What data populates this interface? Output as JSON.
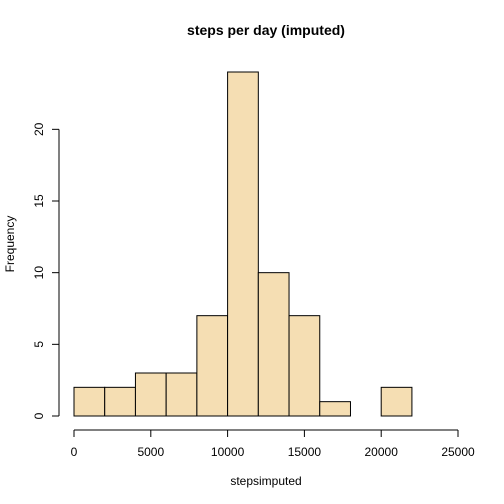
{
  "chart_data": {
    "type": "bar",
    "title": "steps per day (imputed)",
    "xlabel": "stepsimputed",
    "ylabel": "Frequency",
    "bins": [
      {
        "from": 0,
        "to": 2000,
        "count": 2
      },
      {
        "from": 2000,
        "to": 4000,
        "count": 2
      },
      {
        "from": 4000,
        "to": 6000,
        "count": 3
      },
      {
        "from": 6000,
        "to": 8000,
        "count": 3
      },
      {
        "from": 8000,
        "to": 10000,
        "count": 7
      },
      {
        "from": 10000,
        "to": 12000,
        "count": 24
      },
      {
        "from": 12000,
        "to": 14000,
        "count": 10
      },
      {
        "from": 14000,
        "to": 16000,
        "count": 7
      },
      {
        "from": 16000,
        "to": 18000,
        "count": 1
      },
      {
        "from": 18000,
        "to": 20000,
        "count": 0
      },
      {
        "from": 20000,
        "to": 22000,
        "count": 2
      }
    ],
    "xlim": [
      0,
      25000
    ],
    "ylim": [
      0,
      24
    ],
    "x_ticks": [
      0,
      5000,
      10000,
      15000,
      20000,
      25000
    ],
    "y_ticks": [
      0,
      5,
      10,
      15,
      20
    ],
    "bar_color": "#F5DEB3",
    "bar_border": "#000000",
    "grid": false
  }
}
